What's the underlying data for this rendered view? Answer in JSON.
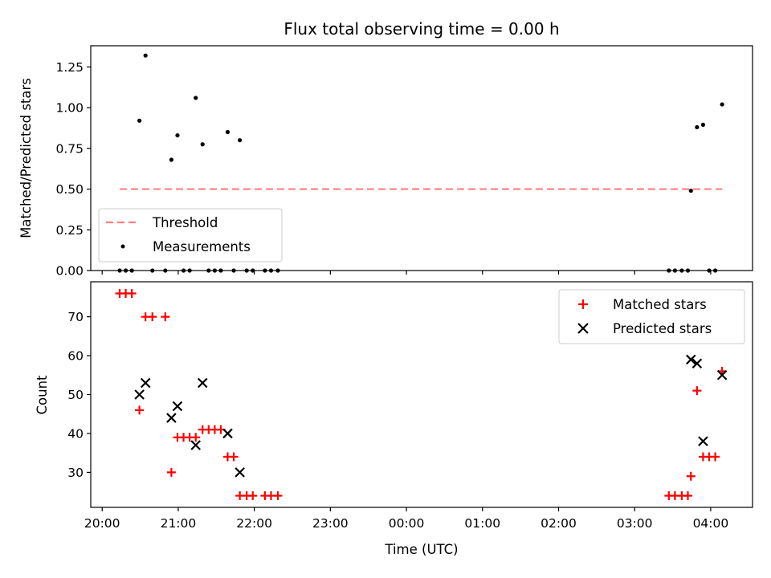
{
  "chart_data": {
    "title": "Flux total observing time = 0.00 h",
    "xlabel": "Time (UTC)",
    "x_tick_labels": [
      "20:00",
      "21:00",
      "22:00",
      "23:00",
      "00:00",
      "01:00",
      "02:00",
      "03:00",
      "04:00"
    ],
    "x_ticks_hours": [
      20,
      21,
      22,
      23,
      24,
      25,
      26,
      27,
      28
    ],
    "xlim_hours": [
      19.85,
      28.55
    ],
    "top": {
      "type": "scatter",
      "ylabel": "Matched/Predicted stars",
      "ylim": [
        0,
        1.38
      ],
      "y_ticks": [
        0.0,
        0.25,
        0.5,
        0.75,
        1.0,
        1.25
      ],
      "y_tick_labels": [
        "0.00",
        "0.25",
        "0.50",
        "0.75",
        "1.00",
        "1.25"
      ],
      "threshold": {
        "name": "Threshold",
        "value": 0.5,
        "x_start": 20.23,
        "x_end": 28.15,
        "color": "#ff7f7f"
      },
      "measurements": {
        "name": "Measurements",
        "color": "#000000",
        "x": [
          20.23,
          20.31,
          20.39,
          20.49,
          20.57,
          20.66,
          20.83,
          20.91,
          20.99,
          21.07,
          21.15,
          21.23,
          21.32,
          21.4,
          21.48,
          21.56,
          21.65,
          21.73,
          21.81,
          21.9,
          21.98,
          22.14,
          22.22,
          22.31,
          27.45,
          27.53,
          27.62,
          27.7,
          27.74,
          27.82,
          27.9,
          27.98,
          28.06,
          28.15
        ],
        "y": [
          0.0,
          0.0,
          0.0,
          0.92,
          1.32,
          0.0,
          0.0,
          0.68,
          0.83,
          0.0,
          0.0,
          1.06,
          0.775,
          0.0,
          0.0,
          0.0,
          0.85,
          0.0,
          0.8,
          0.0,
          0.0,
          0.0,
          0.0,
          0.0,
          0.0,
          0.0,
          0.0,
          0.0,
          0.49,
          0.88,
          0.895,
          0.0,
          0.0,
          1.02
        ]
      }
    },
    "bottom": {
      "type": "scatter",
      "ylabel": "Count",
      "ylim": [
        21,
        79
      ],
      "y_ticks": [
        30,
        40,
        50,
        60,
        70
      ],
      "y_tick_labels": [
        "30",
        "40",
        "50",
        "60",
        "70"
      ],
      "matched": {
        "name": "Matched stars",
        "color": "#ff0000",
        "x": [
          20.23,
          20.31,
          20.39,
          20.49,
          20.57,
          20.66,
          20.83,
          20.91,
          20.99,
          21.07,
          21.15,
          21.23,
          21.32,
          21.4,
          21.48,
          21.56,
          21.65,
          21.73,
          21.81,
          21.9,
          21.98,
          22.14,
          22.22,
          22.31,
          27.45,
          27.53,
          27.62,
          27.7,
          27.74,
          27.82,
          27.9,
          27.98,
          28.06,
          28.15
        ],
        "y": [
          76,
          76,
          76,
          46,
          70,
          70,
          70,
          30,
          39,
          39,
          39,
          39,
          41,
          41,
          41,
          41,
          34,
          34,
          24,
          24,
          24,
          24,
          24,
          24,
          24,
          24,
          24,
          24,
          29,
          51,
          34,
          34,
          34,
          56
        ]
      },
      "predicted": {
        "name": "Predicted stars",
        "color": "#000000",
        "x": [
          20.49,
          20.57,
          20.91,
          20.99,
          21.23,
          21.32,
          21.65,
          21.81,
          27.74,
          27.82,
          27.9,
          28.15
        ],
        "y": [
          50,
          53,
          44,
          47,
          37,
          53,
          40,
          30,
          59,
          58,
          38,
          55
        ]
      }
    }
  }
}
